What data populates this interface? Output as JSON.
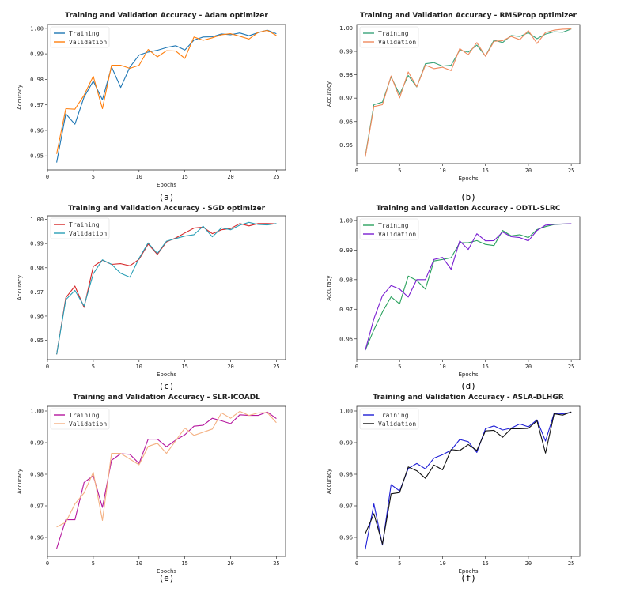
{
  "chart_data": [
    {
      "type": "line",
      "caption": "(a)",
      "title": "Training and Validation Accuracy - Adam optimizer",
      "xlabel": "Epochs",
      "ylabel": "Accuracy",
      "xlim": [
        0,
        26
      ],
      "ylim": [
        0.9445,
        1.0015
      ],
      "xticks": [
        0,
        5,
        10,
        15,
        20,
        25
      ],
      "yticks": [
        0.95,
        0.96,
        0.97,
        0.98,
        0.99,
        1.0
      ],
      "yticklabels": [
        "0.95",
        "0.96",
        "0.97",
        "0.98",
        "0.99",
        "1.00"
      ],
      "legend": "upper-left",
      "x": [
        1,
        2,
        3,
        4,
        5,
        6,
        7,
        8,
        9,
        10,
        11,
        12,
        13,
        14,
        15,
        16,
        17,
        18,
        19,
        20,
        21,
        22,
        23,
        24,
        25
      ],
      "series": [
        {
          "name": "Training",
          "color": "#1f77b4",
          "values": [
            0.9474,
            0.9665,
            0.9624,
            0.9731,
            0.9793,
            0.972,
            0.9849,
            0.9768,
            0.9848,
            0.9895,
            0.9907,
            0.9914,
            0.9925,
            0.9932,
            0.9915,
            0.9954,
            0.9966,
            0.9967,
            0.9978,
            0.9975,
            0.9982,
            0.9971,
            0.9983,
            0.9993,
            0.9979
          ]
        },
        {
          "name": "Validation",
          "color": "#ff7f0e",
          "values": [
            0.9508,
            0.9685,
            0.9683,
            0.9738,
            0.9812,
            0.9685,
            0.9855,
            0.9855,
            0.9843,
            0.9855,
            0.9917,
            0.9888,
            0.9912,
            0.9911,
            0.9882,
            0.9966,
            0.9953,
            0.9963,
            0.9975,
            0.9979,
            0.9969,
            0.9958,
            0.9984,
            0.9992,
            0.9972
          ]
        }
      ]
    },
    {
      "type": "line",
      "caption": "(b)",
      "title": "Training and Validation Accuracy - RMSProp optimizer",
      "xlabel": "Epochs",
      "ylabel": "Accuracy",
      "xlim": [
        0,
        26
      ],
      "ylim": [
        0.942,
        1.0015
      ],
      "xticks": [
        0,
        5,
        10,
        15,
        20,
        25
      ],
      "yticks": [
        0.95,
        0.96,
        0.97,
        0.98,
        0.99,
        1.0
      ],
      "yticklabels": [
        "0.95",
        "0.96",
        "0.97",
        "0.98",
        "0.99",
        "1.00"
      ],
      "legend": "upper-left",
      "x": [
        1,
        2,
        3,
        4,
        5,
        6,
        7,
        8,
        9,
        10,
        11,
        12,
        13,
        14,
        15,
        16,
        17,
        18,
        19,
        20,
        21,
        22,
        23,
        24,
        25
      ],
      "series": [
        {
          "name": "Training",
          "color": "#3aa47a",
          "values": [
            0.9452,
            0.9672,
            0.9683,
            0.9791,
            0.9716,
            0.9797,
            0.9748,
            0.9847,
            0.9852,
            0.9837,
            0.9841,
            0.9905,
            0.9897,
            0.9927,
            0.988,
            0.9948,
            0.9938,
            0.9968,
            0.9964,
            0.998,
            0.9954,
            0.9974,
            0.9984,
            0.9982,
            0.9996
          ]
        },
        {
          "name": "Validation",
          "color": "#f08a5d",
          "values": [
            0.9448,
            0.9664,
            0.9672,
            0.9795,
            0.9701,
            0.9812,
            0.9749,
            0.9841,
            0.9826,
            0.9832,
            0.9818,
            0.9912,
            0.9886,
            0.9938,
            0.9879,
            0.9943,
            0.9946,
            0.9964,
            0.995,
            0.9989,
            0.9934,
            0.9981,
            0.9991,
            0.9995,
            0.9996
          ]
        }
      ]
    },
    {
      "type": "line",
      "caption": "(c)",
      "title": "Training and Validation Accuracy - SGD optimizer",
      "xlabel": "Epochs",
      "ylabel": "Accuracy",
      "xlim": [
        0,
        26
      ],
      "ylim": [
        0.942,
        1.0015
      ],
      "xticks": [
        0,
        5,
        10,
        15,
        20,
        25
      ],
      "yticks": [
        0.95,
        0.96,
        0.97,
        0.98,
        0.99,
        1.0
      ],
      "yticklabels": [
        "0.95",
        "0.96",
        "0.97",
        "0.98",
        "0.99",
        "1.00"
      ],
      "legend": "upper-left",
      "x": [
        1,
        2,
        3,
        4,
        5,
        6,
        7,
        8,
        9,
        10,
        11,
        12,
        13,
        14,
        15,
        16,
        17,
        18,
        19,
        20,
        21,
        22,
        23,
        24,
        25
      ],
      "series": [
        {
          "name": "Training",
          "color": "#d62728",
          "values": [
            0.9442,
            0.9676,
            0.9724,
            0.9636,
            0.9805,
            0.9831,
            0.9814,
            0.9817,
            0.9808,
            0.9835,
            0.9898,
            0.9855,
            0.9907,
            0.9923,
            0.9944,
            0.9964,
            0.9968,
            0.9941,
            0.9957,
            0.9962,
            0.9983,
            0.9973,
            0.9983,
            0.9983,
            0.9982
          ]
        },
        {
          "name": "Validation",
          "color": "#2a9fb6",
          "values": [
            0.9442,
            0.9668,
            0.9706,
            0.9642,
            0.9775,
            0.9833,
            0.9814,
            0.9777,
            0.9761,
            0.9839,
            0.9903,
            0.9859,
            0.991,
            0.9921,
            0.9931,
            0.9937,
            0.9972,
            0.9928,
            0.9965,
            0.9957,
            0.9976,
            0.9988,
            0.9979,
            0.9977,
            0.9983
          ]
        }
      ]
    },
    {
      "type": "line",
      "caption": "(d)",
      "title": "Training and Validation Accuracy - ODTL-SLRC",
      "xlabel": "Epochs",
      "ylabel": "Accuracy",
      "xlim": [
        0,
        26
      ],
      "ylim": [
        0.953,
        1.0013
      ],
      "xticks": [
        0,
        5,
        10,
        15,
        20,
        25
      ],
      "yticks": [
        0.96,
        0.97,
        0.98,
        0.99,
        1.0
      ],
      "yticklabels": [
        "0.96",
        "0.97",
        "0.98",
        "0.99",
        "1.00"
      ],
      "legend": "upper-left",
      "x": [
        1,
        2,
        3,
        4,
        5,
        6,
        7,
        8,
        9,
        10,
        11,
        12,
        13,
        14,
        15,
        16,
        17,
        18,
        19,
        20,
        21,
        22,
        23,
        24,
        25
      ],
      "series": [
        {
          "name": "Training",
          "color": "#2ca25f",
          "values": [
            0.9562,
            0.9631,
            0.9691,
            0.9742,
            0.9718,
            0.9812,
            0.9797,
            0.9768,
            0.9863,
            0.9868,
            0.9874,
            0.9925,
            0.9925,
            0.9932,
            0.9919,
            0.9915,
            0.9966,
            0.9948,
            0.9952,
            0.9942,
            0.9969,
            0.9979,
            0.9986,
            0.9988,
            0.9989
          ]
        },
        {
          "name": "Validation",
          "color": "#7a1fd1",
          "values": [
            0.9562,
            0.9668,
            0.9746,
            0.978,
            0.9768,
            0.9741,
            0.98,
            0.98,
            0.9868,
            0.9875,
            0.9835,
            0.9931,
            0.9902,
            0.9955,
            0.9931,
            0.9932,
            0.9961,
            0.9945,
            0.9942,
            0.9931,
            0.9966,
            0.9984,
            0.9987,
            0.9988,
            0.9989
          ]
        }
      ]
    },
    {
      "type": "line",
      "caption": "(e)",
      "title": "Training and Validation Accuracy - SLR-ICOADL",
      "xlabel": "Epochs",
      "ylabel": "Accuracy",
      "xlim": [
        0,
        26
      ],
      "ylim": [
        0.954,
        1.0015
      ],
      "xticks": [
        0,
        5,
        10,
        15,
        20,
        25
      ],
      "yticks": [
        0.96,
        0.97,
        0.98,
        0.99,
        1.0
      ],
      "yticklabels": [
        "0.96",
        "0.97",
        "0.98",
        "0.99",
        "1.00"
      ],
      "legend": "upper-left",
      "x": [
        1,
        2,
        3,
        4,
        5,
        6,
        7,
        8,
        9,
        10,
        11,
        12,
        13,
        14,
        15,
        16,
        17,
        18,
        19,
        20,
        21,
        22,
        23,
        24,
        25
      ],
      "series": [
        {
          "name": "Training",
          "color": "#b5179e",
          "values": [
            0.9565,
            0.9656,
            0.9656,
            0.9774,
            0.9795,
            0.9695,
            0.9844,
            0.9865,
            0.9863,
            0.9834,
            0.9911,
            0.9911,
            0.9887,
            0.9908,
            0.9925,
            0.9952,
            0.9955,
            0.9977,
            0.9969,
            0.996,
            0.9988,
            0.9986,
            0.9986,
            0.9997,
            0.9976
          ]
        },
        {
          "name": "Validation",
          "color": "#f4b183",
          "values": [
            0.9633,
            0.9648,
            0.9706,
            0.9741,
            0.9806,
            0.9654,
            0.9866,
            0.9866,
            0.9848,
            0.983,
            0.9888,
            0.9898,
            0.9866,
            0.9906,
            0.9946,
            0.9923,
            0.9933,
            0.9943,
            0.9994,
            0.9977,
            0.9999,
            0.9986,
            0.9994,
            0.9995,
            0.9963
          ]
        }
      ]
    },
    {
      "type": "line",
      "caption": "(f)",
      "title": "Training and Validation Accuracy - ASLA-DLHGR",
      "xlabel": "Epochs",
      "ylabel": "Accuracy",
      "xlim": [
        0,
        26
      ],
      "ylim": [
        0.954,
        1.0015
      ],
      "xticks": [
        0,
        5,
        10,
        15,
        20,
        25
      ],
      "yticks": [
        0.96,
        0.97,
        0.98,
        0.99,
        1.0
      ],
      "yticklabels": [
        "0.96",
        "0.97",
        "0.98",
        "0.99",
        "1.00"
      ],
      "legend": "upper-left",
      "x": [
        1,
        2,
        3,
        4,
        5,
        6,
        7,
        8,
        9,
        10,
        11,
        12,
        13,
        14,
        15,
        16,
        17,
        18,
        19,
        20,
        21,
        22,
        23,
        24,
        25
      ],
      "series": [
        {
          "name": "Training",
          "color": "#1f1fd6",
          "values": [
            0.9562,
            0.9706,
            0.9576,
            0.9767,
            0.9747,
            0.9818,
            0.9834,
            0.9817,
            0.9851,
            0.9862,
            0.9876,
            0.991,
            0.9903,
            0.9869,
            0.9944,
            0.9953,
            0.994,
            0.9946,
            0.9959,
            0.995,
            0.9972,
            0.9905,
            0.9993,
            0.9991,
            0.9996
          ]
        },
        {
          "name": "Validation",
          "color": "#111111",
          "values": [
            0.9612,
            0.9675,
            0.9579,
            0.9738,
            0.9742,
            0.9823,
            0.9811,
            0.9787,
            0.9829,
            0.9814,
            0.9878,
            0.9875,
            0.9894,
            0.9875,
            0.9937,
            0.9939,
            0.9917,
            0.9944,
            0.9944,
            0.9945,
            0.9969,
            0.9867,
            0.9991,
            0.9987,
            0.9997
          ]
        }
      ]
    }
  ]
}
